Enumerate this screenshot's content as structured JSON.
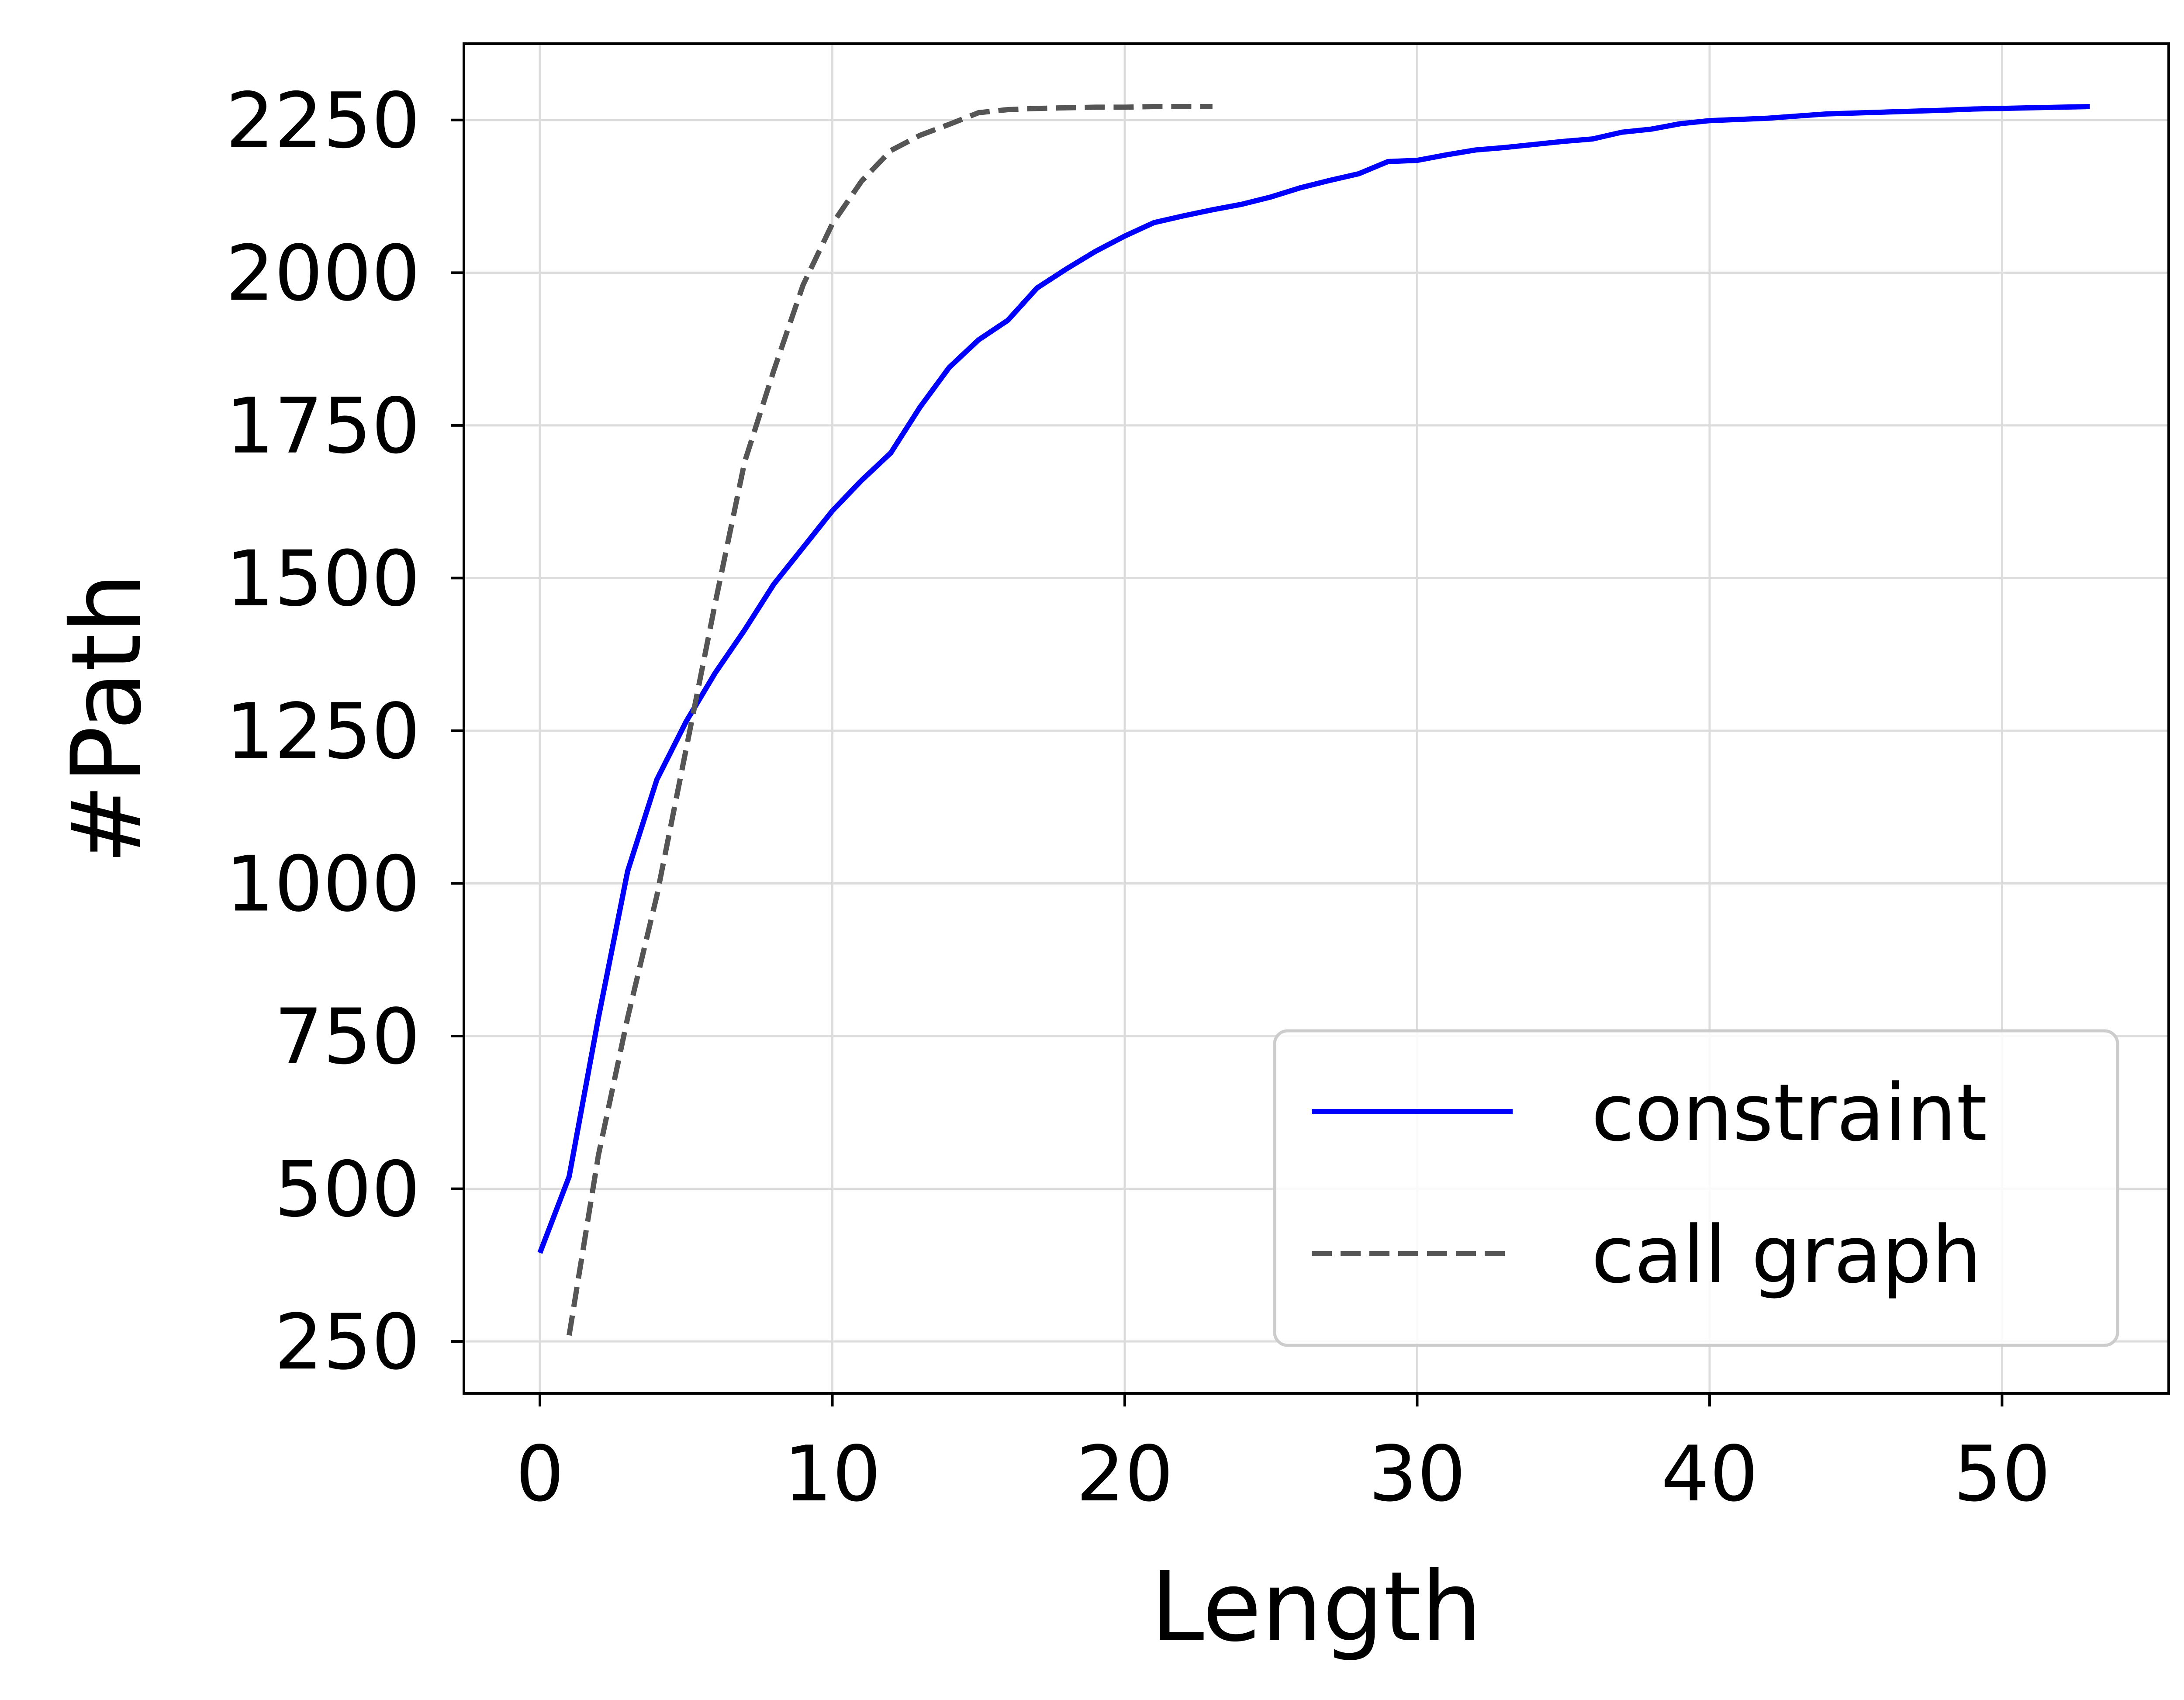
{
  "chart_data": {
    "type": "line",
    "title": "",
    "xlabel": "Length",
    "ylabel": "#Path",
    "xlim": [
      -2.6,
      55.7
    ],
    "ylim": [
      165,
      2375
    ],
    "xticks": [
      0,
      10,
      20,
      30,
      40,
      50
    ],
    "yticks": [
      250,
      500,
      750,
      1000,
      1250,
      1500,
      1750,
      2000,
      2250
    ],
    "grid": true,
    "legend": {
      "location": "lower-right"
    },
    "series": [
      {
        "name": "constraint",
        "color": "#0000ff",
        "style": "solid",
        "x": [
          0,
          1,
          2,
          3,
          4,
          5,
          6,
          7,
          8,
          9,
          10,
          11,
          12,
          13,
          14,
          15,
          16,
          17,
          18,
          19,
          20,
          21,
          22,
          23,
          24,
          25,
          26,
          27,
          28,
          29,
          30,
          31,
          32,
          33,
          34,
          35,
          36,
          37,
          38,
          39,
          40,
          42,
          44,
          46,
          48,
          49,
          51,
          53
        ],
        "y": [
          395,
          520,
          780,
          1020,
          1170,
          1265,
          1345,
          1415,
          1490,
          1550,
          1610,
          1660,
          1705,
          1780,
          1845,
          1890,
          1922,
          1975,
          2006,
          2035,
          2060,
          2082,
          2093,
          2103,
          2112,
          2124,
          2139,
          2151,
          2162,
          2182,
          2184,
          2193,
          2201,
          2205,
          2210,
          2215,
          2219,
          2230,
          2235,
          2244,
          2249,
          2253,
          2260,
          2263,
          2266,
          2268,
          2270,
          2272
        ]
      },
      {
        "name": "call graph",
        "color": "#555555",
        "style": "dashed",
        "x": [
          1,
          2,
          3,
          4,
          5,
          6,
          7,
          8,
          9,
          10,
          11,
          12,
          13,
          14,
          15,
          16,
          17,
          18,
          19,
          20,
          21,
          22,
          23
        ],
        "y": [
          260,
          555,
          780,
          980,
          1220,
          1460,
          1690,
          1840,
          1980,
          2080,
          2150,
          2200,
          2225,
          2243,
          2262,
          2267,
          2269,
          2270,
          2271,
          2271,
          2272,
          2272,
          2272
        ]
      }
    ]
  },
  "colors": {
    "background": "#ffffff",
    "grid": "#dcdcdc",
    "axes": "#000000",
    "legend_border": "#cccccc"
  }
}
